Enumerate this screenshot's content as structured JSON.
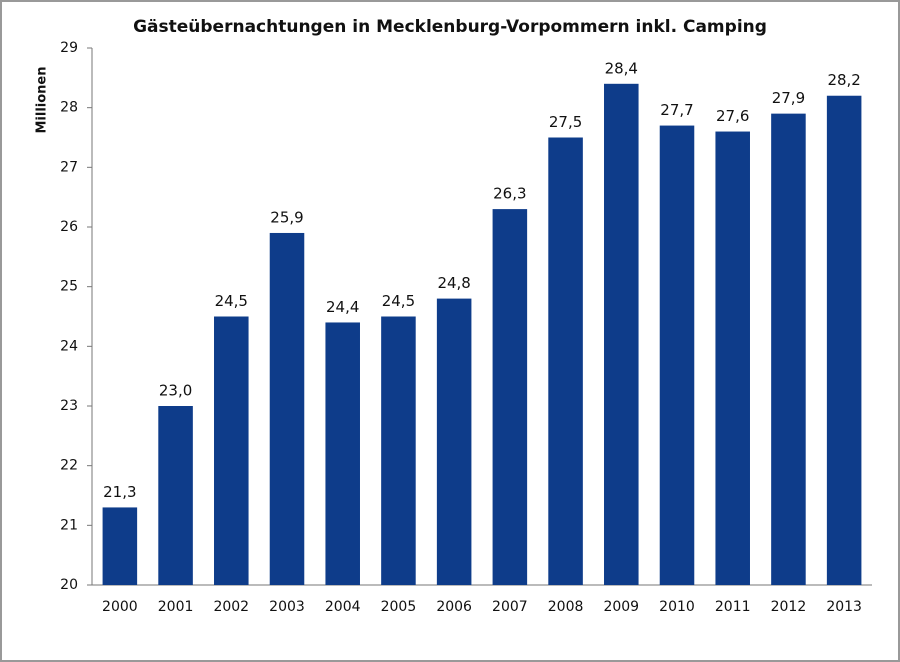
{
  "chart_data": {
    "type": "bar",
    "title": "Gästeübernachtungen  in Mecklenburg-Vorpommern inkl. Camping",
    "y_label": "Millionen",
    "categories": [
      "2000",
      "2001",
      "2002",
      "2003",
      "2004",
      "2005",
      "2006",
      "2007",
      "2008",
      "2009",
      "2010",
      "2011",
      "2012",
      "2013"
    ],
    "values": [
      21.3,
      23.0,
      24.5,
      25.9,
      24.4,
      24.5,
      24.8,
      26.3,
      27.5,
      28.4,
      27.7,
      27.6,
      27.9,
      28.2
    ],
    "value_labels": [
      "21,3",
      "23,0",
      "24,5",
      "25,9",
      "24,4",
      "24,5",
      "24,8",
      "26,3",
      "27,5",
      "28,4",
      "27,7",
      "27,6",
      "27,9",
      "28,2"
    ],
    "color": "#0e3c8a",
    "ylim": [
      20,
      29
    ],
    "yticks": [
      20,
      21,
      22,
      23,
      24,
      25,
      26,
      27,
      28,
      29
    ],
    "grid": false
  }
}
